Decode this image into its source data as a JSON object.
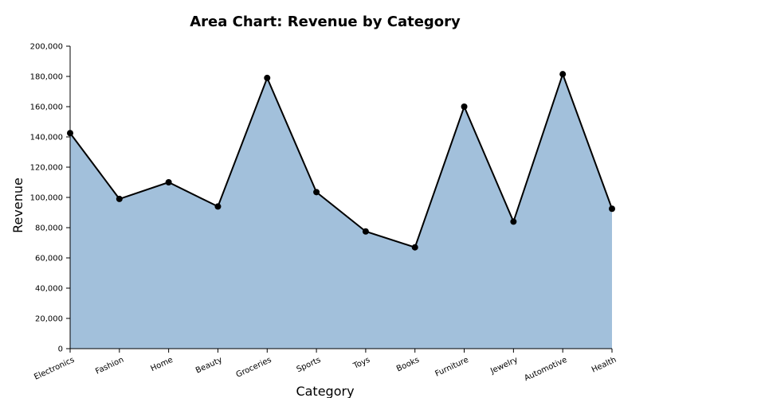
{
  "chart_data": {
    "type": "area",
    "title": "Area Chart: Revenue by Category",
    "xlabel": "Category",
    "ylabel": "Revenue",
    "categories": [
      "Electronics",
      "Fashion",
      "Home",
      "Beauty",
      "Groceries",
      "Sports",
      "Toys",
      "Books",
      "Furniture",
      "Jewelry",
      "Automotive",
      "Health"
    ],
    "values": [
      142500,
      99000,
      110000,
      94000,
      179000,
      103500,
      77500,
      67000,
      160000,
      84000,
      181500,
      92500
    ],
    "ylim": [
      0,
      200000
    ],
    "yticks": [
      "0",
      "20,000",
      "40,000",
      "60,000",
      "80,000",
      "100,000",
      "120,000",
      "140,000",
      "160,000",
      "180,000",
      "200,000"
    ],
    "ytick_values": [
      0,
      20000,
      40000,
      60000,
      80000,
      100000,
      120000,
      140000,
      160000,
      180000,
      200000
    ],
    "grid": false,
    "colors": {
      "area": "#a2c0db",
      "line": "#000000",
      "points": "#000000"
    }
  }
}
